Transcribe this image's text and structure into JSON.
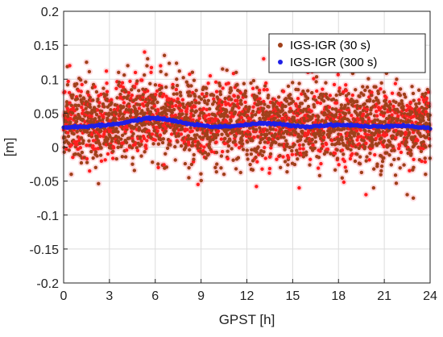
{
  "chart_data": {
    "type": "scatter",
    "title": "",
    "xlabel": "GPST [h]",
    "ylabel": "[m]",
    "xlim": [
      0,
      24
    ],
    "ylim": [
      -0.2,
      0.2
    ],
    "xticks": [
      0,
      3,
      6,
      9,
      12,
      15,
      18,
      21,
      24
    ],
    "yticks": [
      -0.2,
      -0.15,
      -0.1,
      -0.05,
      0,
      0.05,
      0.1,
      0.15,
      0.2
    ],
    "xtick_labels": [
      "0",
      "3",
      "6",
      "9",
      "12",
      "15",
      "18",
      "21",
      "24"
    ],
    "ytick_labels": [
      "-0.2",
      "-0.15",
      "-0.1",
      "-0.05",
      "0",
      "0.05",
      "0.1",
      "0.15",
      "0.2"
    ],
    "grid": true,
    "legend_position": "top-right",
    "series": [
      {
        "name": "IGS-IGR (30 s)",
        "color": "#a0401a",
        "marker": "dot",
        "baseline": [
          {
            "x": 0,
            "y": 0.035
          },
          {
            "x": 3,
            "y": 0.038
          },
          {
            "x": 6,
            "y": 0.045
          },
          {
            "x": 9,
            "y": 0.035
          },
          {
            "x": 12,
            "y": 0.035
          },
          {
            "x": 15,
            "y": 0.035
          },
          {
            "x": 18,
            "y": 0.033
          },
          {
            "x": 21,
            "y": 0.03
          },
          {
            "x": 24,
            "y": 0.03
          }
        ],
        "spread": 0.028,
        "extremes": [
          {
            "x": 0.4,
            "y": 0.12
          },
          {
            "x": 0.5,
            "y": -0.04
          },
          {
            "x": 1.5,
            "y": 0.125
          },
          {
            "x": 2.8,
            "y": 0.112
          },
          {
            "x": 3.6,
            "y": 0.11
          },
          {
            "x": 4.2,
            "y": 0.12
          },
          {
            "x": 5.3,
            "y": 0.14
          },
          {
            "x": 5.5,
            "y": 0.13
          },
          {
            "x": 6.6,
            "y": 0.135
          },
          {
            "x": 6.2,
            "y": -0.03
          },
          {
            "x": 7.4,
            "y": 0.1
          },
          {
            "x": 8.2,
            "y": -0.045
          },
          {
            "x": 8.8,
            "y": -0.055
          },
          {
            "x": 10.5,
            "y": -0.04
          },
          {
            "x": 11.3,
            "y": 0.11
          },
          {
            "x": 13.1,
            "y": 0.13
          },
          {
            "x": 13.6,
            "y": 0.145
          },
          {
            "x": 14.2,
            "y": -0.03
          },
          {
            "x": 16.0,
            "y": 0.11
          },
          {
            "x": 17.5,
            "y": 0.12
          },
          {
            "x": 19.1,
            "y": 0.125
          },
          {
            "x": 19.8,
            "y": -0.07
          },
          {
            "x": 20.3,
            "y": -0.06
          },
          {
            "x": 20.8,
            "y": -0.035
          },
          {
            "x": 21.8,
            "y": 0.155
          },
          {
            "x": 22.5,
            "y": -0.07
          },
          {
            "x": 22.9,
            "y": -0.075
          },
          {
            "x": 23.4,
            "y": 0.12
          },
          {
            "x": 23.7,
            "y": -0.04
          },
          {
            "x": 2.1,
            "y": -0.03
          },
          {
            "x": 9.6,
            "y": 0.105
          },
          {
            "x": 12.4,
            "y": -0.02
          }
        ]
      },
      {
        "name": "IGS-IGR (300 s)",
        "color": "#1f1fe6",
        "marker": "dot",
        "points": [
          {
            "x": 0,
            "y": 0.029
          },
          {
            "x": 1,
            "y": 0.03
          },
          {
            "x": 2,
            "y": 0.031
          },
          {
            "x": 3,
            "y": 0.033
          },
          {
            "x": 4,
            "y": 0.036
          },
          {
            "x": 5,
            "y": 0.041
          },
          {
            "x": 6,
            "y": 0.043
          },
          {
            "x": 7,
            "y": 0.04
          },
          {
            "x": 8,
            "y": 0.035
          },
          {
            "x": 9,
            "y": 0.032
          },
          {
            "x": 10,
            "y": 0.03
          },
          {
            "x": 11,
            "y": 0.031
          },
          {
            "x": 12,
            "y": 0.033
          },
          {
            "x": 13,
            "y": 0.035
          },
          {
            "x": 14,
            "y": 0.034
          },
          {
            "x": 15,
            "y": 0.032
          },
          {
            "x": 16,
            "y": 0.03
          },
          {
            "x": 17,
            "y": 0.032
          },
          {
            "x": 18,
            "y": 0.033
          },
          {
            "x": 19,
            "y": 0.032
          },
          {
            "x": 20,
            "y": 0.03
          },
          {
            "x": 21,
            "y": 0.031
          },
          {
            "x": 22,
            "y": 0.032
          },
          {
            "x": 23,
            "y": 0.03
          },
          {
            "x": 24,
            "y": 0.028
          }
        ]
      }
    ]
  }
}
